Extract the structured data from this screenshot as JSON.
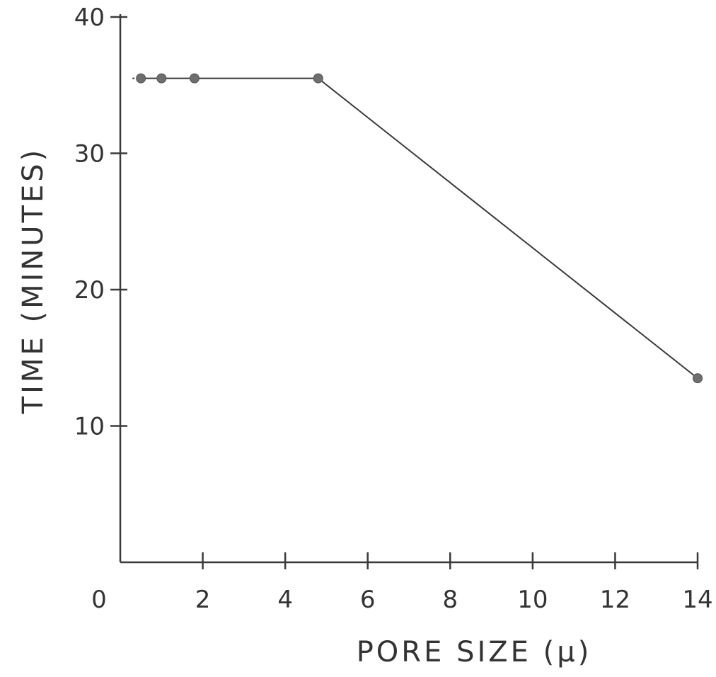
{
  "chart_data": {
    "type": "line",
    "title": "",
    "xlabel": "PORE SIZE (μ)",
    "ylabel": "TIME (MINUTES)",
    "xlim": [
      0,
      14
    ],
    "ylim": [
      0,
      40
    ],
    "x_ticks": [
      0,
      2,
      4,
      6,
      8,
      10,
      12,
      14
    ],
    "y_ticks": [
      10,
      20,
      30,
      40
    ],
    "grid": false,
    "series": [
      {
        "x": [
          0.5,
          1.0,
          1.8,
          4.8,
          14.0
        ],
        "y": [
          35.5,
          35.5,
          35.5,
          35.5,
          13.5
        ]
      }
    ]
  }
}
